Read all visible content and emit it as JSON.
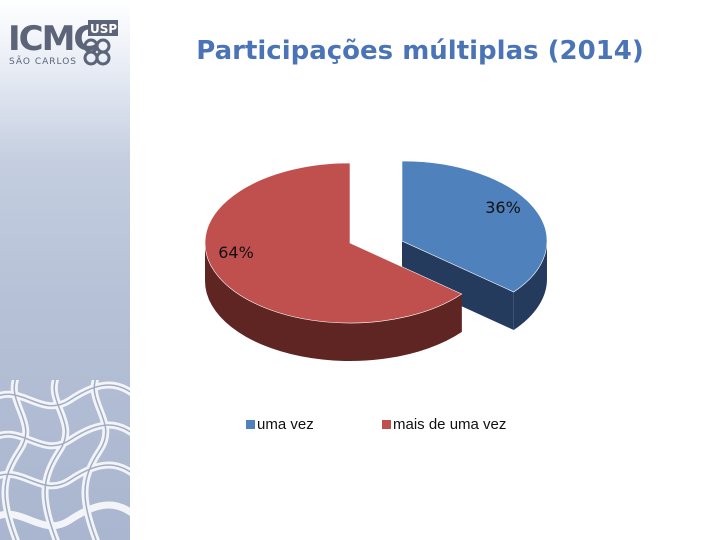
{
  "logo": {
    "text": "ICMC",
    "badge": "USP",
    "subtext": "SÃO CARLOS"
  },
  "slide": {
    "title": "Participações múltiplas (2014)"
  },
  "chart_data": {
    "type": "pie",
    "title": "Participações múltiplas (2014)",
    "three_d": true,
    "exploded": true,
    "legend_position": "bottom",
    "categories": [
      "uma vez",
      "mais de uma vez"
    ],
    "values": [
      36,
      64
    ],
    "labels": [
      "36%",
      "64%"
    ],
    "colors": [
      "#4f81bd",
      "#c0504d"
    ],
    "side_colors": [
      "#243b5e",
      "#5e2523"
    ]
  }
}
